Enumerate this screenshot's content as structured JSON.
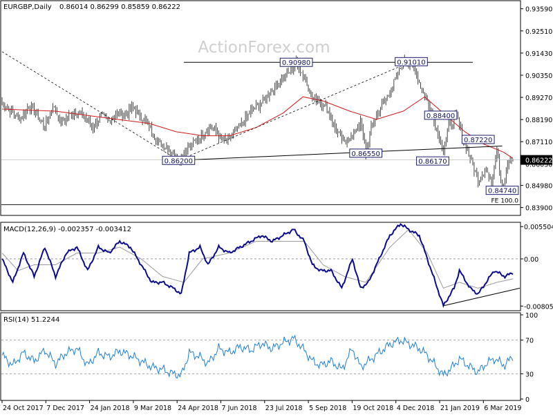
{
  "header": {
    "symbol_label": "EURGBP,Daily",
    "ohlc": "0.86014 0.86299 0.85859 0.86222",
    "watermark": "ActionForex.com"
  },
  "colors": {
    "candles": "#2e2e2e",
    "ma": "#d21a1a",
    "macd": "#0a0a8c",
    "signal": "#9a9a9a",
    "rsi": "#1e7fd6",
    "level_lines": "#000000",
    "label_border": "#1a1a6e",
    "watermark": "#cfcfcf"
  },
  "chart_data": [
    {
      "type": "candlestick",
      "pane": "price",
      "x_labels": [
        "24 Oct 2017",
        "7 Dec 2017",
        "24 Jan 2018",
        "9 Mar 2018",
        "24 Apr 2018",
        "7 Jun 2018",
        "23 Jul 2018",
        "5 Sep 2018",
        "19 Oct 2018",
        "4 Dec 2018",
        "21 Jan 2019",
        "6 Mar 2019"
      ],
      "y_ticks": [
        "0.93590",
        "0.92510",
        "0.91430",
        "0.90350",
        "0.89270",
        "0.88190",
        "0.87110",
        "0.86030",
        "0.84980",
        "0.83900"
      ],
      "ylim": [
        0.8355,
        0.9395
      ],
      "close_path": [
        [
          0,
          0.89
        ],
        [
          8,
          0.885
        ],
        [
          14,
          0.882
        ],
        [
          20,
          0.889
        ],
        [
          26,
          0.884
        ],
        [
          32,
          0.878
        ],
        [
          38,
          0.889
        ],
        [
          44,
          0.88
        ],
        [
          50,
          0.884
        ],
        [
          56,
          0.886
        ],
        [
          62,
          0.883
        ],
        [
          68,
          0.878
        ],
        [
          74,
          0.884
        ],
        [
          80,
          0.881
        ],
        [
          86,
          0.885
        ],
        [
          92,
          0.884
        ],
        [
          98,
          0.888
        ],
        [
          104,
          0.883
        ],
        [
          110,
          0.879
        ],
        [
          116,
          0.871
        ],
        [
          122,
          0.869
        ],
        [
          128,
          0.866
        ],
        [
          132,
          0.862
        ],
        [
          138,
          0.867
        ],
        [
          144,
          0.871
        ],
        [
          150,
          0.875
        ],
        [
          156,
          0.879
        ],
        [
          162,
          0.874
        ],
        [
          168,
          0.871
        ],
        [
          174,
          0.876
        ],
        [
          180,
          0.88
        ],
        [
          186,
          0.886
        ],
        [
          192,
          0.889
        ],
        [
          198,
          0.893
        ],
        [
          204,
          0.898
        ],
        [
          210,
          0.902
        ],
        [
          216,
          0.906
        ],
        [
          220,
          0.9098
        ],
        [
          226,
          0.902
        ],
        [
          232,
          0.893
        ],
        [
          238,
          0.891
        ],
        [
          244,
          0.886
        ],
        [
          250,
          0.876
        ],
        [
          256,
          0.871
        ],
        [
          262,
          0.874
        ],
        [
          268,
          0.881
        ],
        [
          272,
          0.8655
        ],
        [
          276,
          0.878
        ],
        [
          282,
          0.887
        ],
        [
          288,
          0.893
        ],
        [
          294,
          0.901
        ],
        [
          300,
          0.91
        ],
        [
          306,
          0.9101
        ],
        [
          312,
          0.9
        ],
        [
          318,
          0.891
        ],
        [
          322,
          0.884
        ],
        [
          326,
          0.875
        ],
        [
          330,
          0.868
        ],
        [
          334,
          0.878
        ],
        [
          340,
          0.884
        ],
        [
          344,
          0.874
        ],
        [
          350,
          0.863
        ],
        [
          356,
          0.852
        ],
        [
          362,
          0.858
        ],
        [
          366,
          0.85
        ],
        [
          370,
          0.869
        ],
        [
          374,
          0.8474
        ],
        [
          378,
          0.86
        ],
        [
          382,
          0.8622
        ]
      ],
      "ma_path": [
        [
          0,
          0.887
        ],
        [
          40,
          0.886
        ],
        [
          80,
          0.8825
        ],
        [
          110,
          0.88
        ],
        [
          130,
          0.876
        ],
        [
          150,
          0.874
        ],
        [
          170,
          0.874
        ],
        [
          190,
          0.878
        ],
        [
          210,
          0.885
        ],
        [
          225,
          0.893
        ],
        [
          240,
          0.891
        ],
        [
          260,
          0.886
        ],
        [
          280,
          0.882
        ],
        [
          300,
          0.886
        ],
        [
          316,
          0.893
        ],
        [
          330,
          0.885
        ],
        [
          346,
          0.876
        ],
        [
          360,
          0.87
        ],
        [
          375,
          0.866
        ],
        [
          382,
          0.863
        ]
      ],
      "current_price": "0.86222",
      "annotations": [
        {
          "label": "0.86200",
          "bar": 132,
          "price": 0.862
        },
        {
          "label": "0.90980",
          "bar": 220,
          "price": 0.9098
        },
        {
          "label": "0.86550",
          "bar": 272,
          "price": 0.8655
        },
        {
          "label": "0.91010",
          "bar": 306,
          "price": 0.9101
        },
        {
          "label": "0.88400",
          "bar": 328,
          "price": 0.884
        },
        {
          "label": "0.86170",
          "bar": 322,
          "price": 0.8617
        },
        {
          "label": "0.87220",
          "bar": 356,
          "price": 0.8722
        },
        {
          "label": "0.84740",
          "bar": 374,
          "price": 0.8474
        }
      ],
      "resistance_line": {
        "from": [
          136,
          0.9098
        ],
        "to": [
          352,
          0.9098
        ]
      },
      "neckline": {
        "from": [
          132,
          0.862
        ],
        "to": [
          374,
          0.869
        ]
      },
      "dashed_trend_lines": [
        {
          "from": [
            0,
            0.915
          ],
          "to": [
            132,
            0.862
          ]
        },
        {
          "from": [
            132,
            0.862
          ],
          "to": [
            306,
            0.9101
          ]
        }
      ],
      "fe_line": {
        "label": "FE 100.0",
        "price": 0.8404
      }
    },
    {
      "type": "line",
      "pane": "macd",
      "label": "MACD(12,26,9) -0.002357 -0.003412",
      "y_ticks": [
        "0.005504",
        "0.00",
        "-0.00805"
      ],
      "ylim": [
        -0.0086,
        0.006
      ],
      "series": [
        {
          "name": "MACD",
          "values_path": [
            [
              0,
              0.0
            ],
            [
              8,
              -0.004
            ],
            [
              16,
              0.001
            ],
            [
              24,
              -0.003
            ],
            [
              32,
              0.002
            ],
            [
              40,
              -0.003
            ],
            [
              48,
              0.001
            ],
            [
              56,
              0.002
            ],
            [
              64,
              -0.002
            ],
            [
              72,
              0.002
            ],
            [
              80,
              0.001
            ],
            [
              88,
              0.003
            ],
            [
              96,
              0.002
            ],
            [
              104,
              -0.001
            ],
            [
              112,
              -0.004
            ],
            [
              120,
              -0.004
            ],
            [
              128,
              -0.005
            ],
            [
              134,
              -0.006
            ],
            [
              140,
              0.001
            ],
            [
              148,
              0.002
            ],
            [
              154,
              -0.001
            ],
            [
              162,
              0.002
            ],
            [
              170,
              0.001
            ],
            [
              178,
              0.002
            ],
            [
              186,
              0.003
            ],
            [
              194,
              0.004
            ],
            [
              202,
              0.003
            ],
            [
              210,
              0.004
            ],
            [
              218,
              0.005
            ],
            [
              226,
              0.003
            ],
            [
              232,
              -0.001
            ],
            [
              238,
              -0.002
            ],
            [
              246,
              -0.002
            ],
            [
              254,
              -0.005
            ],
            [
              262,
              0.0
            ],
            [
              268,
              -0.005
            ],
            [
              274,
              -0.004
            ],
            [
              282,
              0.0
            ],
            [
              290,
              0.004
            ],
            [
              298,
              0.006
            ],
            [
              304,
              0.005
            ],
            [
              312,
              0.004
            ],
            [
              318,
              0.0
            ],
            [
              324,
              -0.004
            ],
            [
              330,
              -0.008
            ],
            [
              338,
              -0.005
            ],
            [
              342,
              -0.002
            ],
            [
              350,
              -0.005
            ],
            [
              356,
              -0.006
            ],
            [
              362,
              -0.004
            ],
            [
              368,
              -0.002
            ],
            [
              376,
              -0.003
            ],
            [
              382,
              -0.002357
            ]
          ]
        },
        {
          "name": "Signal",
          "values_path": [
            [
              0,
              0.001
            ],
            [
              12,
              -0.002
            ],
            [
              24,
              -0.001
            ],
            [
              40,
              -0.001
            ],
            [
              56,
              0.001
            ],
            [
              72,
              0.001
            ],
            [
              88,
              0.002
            ],
            [
              104,
              0.0
            ],
            [
              120,
              -0.003
            ],
            [
              136,
              -0.004
            ],
            [
              150,
              0.0
            ],
            [
              170,
              0.001
            ],
            [
              190,
              0.003
            ],
            [
              210,
              0.003
            ],
            [
              226,
              0.003
            ],
            [
              240,
              -0.001
            ],
            [
              256,
              -0.003
            ],
            [
              272,
              -0.004
            ],
            [
              290,
              0.002
            ],
            [
              304,
              0.005
            ],
            [
              318,
              0.001
            ],
            [
              330,
              -0.005
            ],
            [
              342,
              -0.004
            ],
            [
              356,
              -0.005
            ],
            [
              370,
              -0.004
            ],
            [
              382,
              -0.003412
            ]
          ]
        }
      ],
      "support_line": {
        "from": [
          330,
          -0.008
        ],
        "to": [
          382,
          -0.005
        ]
      }
    },
    {
      "type": "line",
      "pane": "rsi",
      "label": "RSI(14) 51.2244",
      "y_ticks": [
        "100",
        "70",
        "30",
        "0"
      ],
      "ylim": [
        0,
        100
      ],
      "series": [
        {
          "name": "RSI",
          "values_path": [
            [
              0,
              52
            ],
            [
              8,
              40
            ],
            [
              16,
              55
            ],
            [
              24,
              45
            ],
            [
              32,
              58
            ],
            [
              40,
              42
            ],
            [
              48,
              55
            ],
            [
              56,
              60
            ],
            [
              64,
              40
            ],
            [
              72,
              55
            ],
            [
              80,
              50
            ],
            [
              88,
              57
            ],
            [
              96,
              52
            ],
            [
              104,
              45
            ],
            [
              112,
              38
            ],
            [
              120,
              35
            ],
            [
              128,
              30
            ],
            [
              134,
              28
            ],
            [
              140,
              55
            ],
            [
              148,
              50
            ],
            [
              154,
              42
            ],
            [
              162,
              60
            ],
            [
              170,
              55
            ],
            [
              178,
              62
            ],
            [
              186,
              58
            ],
            [
              194,
              66
            ],
            [
              202,
              60
            ],
            [
              210,
              67
            ],
            [
              218,
              72
            ],
            [
              226,
              58
            ],
            [
              232,
              45
            ],
            [
              238,
              40
            ],
            [
              246,
              45
            ],
            [
              254,
              35
            ],
            [
              262,
              60
            ],
            [
              268,
              38
            ],
            [
              274,
              45
            ],
            [
              282,
              55
            ],
            [
              290,
              65
            ],
            [
              298,
              70
            ],
            [
              304,
              66
            ],
            [
              312,
              60
            ],
            [
              318,
              52
            ],
            [
              324,
              40
            ],
            [
              330,
              28
            ],
            [
              338,
              40
            ],
            [
              342,
              48
            ],
            [
              350,
              38
            ],
            [
              356,
              32
            ],
            [
              362,
              42
            ],
            [
              368,
              48
            ],
            [
              376,
              40
            ],
            [
              382,
              51.2244
            ]
          ]
        }
      ]
    }
  ]
}
